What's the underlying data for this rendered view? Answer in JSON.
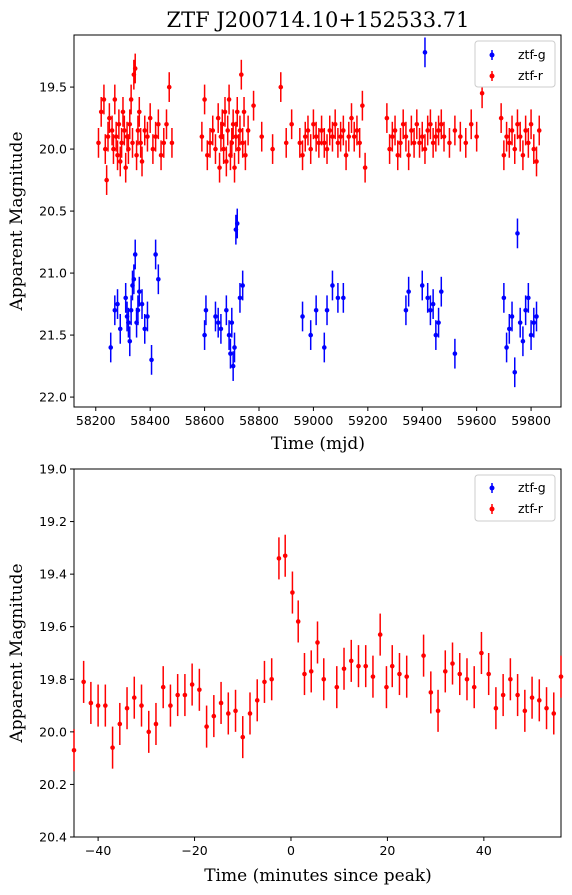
{
  "chart_data": [
    {
      "type": "scatter",
      "title": "ZTF J200714.10+152533.71",
      "xlabel": "Time (mjd)",
      "ylabel": "Apparent Magnitude",
      "xlim": [
        58120,
        59910
      ],
      "ylim": [
        22.08,
        19.08
      ],
      "y_inverted": true,
      "xticks": [
        58200,
        58400,
        58600,
        58800,
        59000,
        59200,
        59400,
        59600,
        59800
      ],
      "yticks": [
        19.5,
        20.0,
        20.5,
        21.0,
        21.5,
        22.0
      ],
      "xtick_labels": [
        "58200",
        "58400",
        "58600",
        "58800",
        "59000",
        "59200",
        "59400",
        "59600",
        "59800"
      ],
      "ytick_labels": [
        "19.5",
        "20.0",
        "20.5",
        "21.0",
        "21.5",
        "22.0"
      ],
      "legend": {
        "placement": "upper-right",
        "entries": [
          "ztf-g",
          "ztf-r"
        ]
      },
      "series": [
        {
          "name": "ztf-g",
          "color": "#0000ff",
          "x": [
            58255,
            58270,
            58280,
            58290,
            58310,
            58315,
            58320,
            58325,
            58330,
            58335,
            58340,
            58345,
            58350,
            58355,
            58360,
            58370,
            58380,
            58390,
            58405,
            58420,
            58430,
            58600,
            58605,
            58640,
            58650,
            58660,
            58680,
            58690,
            58695,
            58700,
            58705,
            58710,
            58715,
            58720,
            58730,
            58740,
            58960,
            58990,
            59010,
            59040,
            59050,
            59070,
            59090,
            59110,
            59340,
            59350,
            59400,
            59410,
            59420,
            59430,
            59440,
            59450,
            59460,
            59470,
            59520,
            59700,
            59710,
            59720,
            59730,
            59740,
            59750,
            59760,
            59770,
            59780,
            59790,
            59800,
            59810,
            59820
          ],
          "y": [
            21.6,
            21.3,
            21.25,
            21.45,
            21.2,
            21.35,
            21.4,
            21.55,
            21.3,
            21.1,
            21.05,
            20.85,
            21.4,
            21.3,
            21.15,
            21.25,
            21.45,
            21.35,
            21.7,
            20.85,
            21.05,
            21.5,
            21.3,
            21.35,
            21.4,
            21.45,
            21.3,
            21.5,
            21.65,
            21.4,
            21.75,
            21.6,
            20.65,
            20.6,
            21.2,
            21.1,
            21.35,
            21.5,
            21.3,
            21.6,
            21.3,
            21.1,
            21.2,
            21.2,
            21.3,
            21.15,
            21.1,
            19.22,
            21.2,
            21.3,
            21.25,
            21.5,
            21.4,
            21.15,
            21.65,
            21.2,
            21.6,
            21.45,
            21.35,
            21.8,
            20.68,
            21.4,
            21.55,
            21.3,
            21.2,
            21.5,
            21.4,
            21.35
          ],
          "y_err": 0.12
        },
        {
          "name": "ztf-r",
          "color": "#ff0000",
          "x": [
            58210,
            58220,
            58230,
            58235,
            58240,
            58245,
            58250,
            58260,
            58265,
            58270,
            58275,
            58280,
            58285,
            58290,
            58295,
            58300,
            58305,
            58310,
            58315,
            58320,
            58325,
            58330,
            58335,
            58340,
            58345,
            58350,
            58355,
            58360,
            58365,
            58370,
            58380,
            58390,
            58400,
            58410,
            58420,
            58430,
            58440,
            58450,
            58460,
            58470,
            58480,
            58590,
            58600,
            58610,
            58620,
            58630,
            58640,
            58650,
            58655,
            58660,
            58665,
            58670,
            58675,
            58680,
            58685,
            58690,
            58695,
            58700,
            58705,
            58710,
            58715,
            58720,
            58725,
            58730,
            58735,
            58740,
            58745,
            58750,
            58760,
            58780,
            58810,
            58850,
            58880,
            58900,
            58920,
            58950,
            58960,
            58970,
            58980,
            58990,
            59000,
            59010,
            59020,
            59030,
            59040,
            59050,
            59060,
            59070,
            59080,
            59090,
            59100,
            59110,
            59120,
            59130,
            59140,
            59150,
            59160,
            59170,
            59180,
            59190,
            59270,
            59280,
            59290,
            59300,
            59310,
            59320,
            59330,
            59340,
            59350,
            59360,
            59370,
            59380,
            59390,
            59400,
            59410,
            59420,
            59430,
            59440,
            59450,
            59460,
            59470,
            59480,
            59500,
            59520,
            59540,
            59560,
            59580,
            59600,
            59620,
            59690,
            59700,
            59710,
            59720,
            59730,
            59740,
            59750,
            59760,
            59770,
            59780,
            59790,
            59800,
            59810,
            59820,
            59830
          ],
          "y": [
            19.95,
            19.7,
            19.6,
            20.0,
            20.25,
            19.9,
            19.75,
            19.85,
            20.0,
            19.6,
            19.9,
            20.05,
            19.8,
            20.1,
            19.95,
            19.7,
            19.85,
            20.15,
            19.9,
            20.0,
            19.8,
            19.6,
            19.95,
            19.4,
            19.35,
            20.05,
            19.85,
            19.7,
            19.95,
            20.1,
            19.85,
            19.9,
            19.75,
            20.0,
            19.9,
            19.8,
            20.05,
            19.95,
            19.8,
            19.5,
            19.95,
            19.9,
            19.6,
            20.05,
            19.95,
            19.85,
            20.0,
            19.75,
            20.15,
            19.9,
            19.8,
            20.0,
            19.7,
            20.1,
            19.85,
            19.6,
            20.05,
            19.95,
            19.8,
            20.15,
            19.9,
            19.7,
            20.0,
            19.85,
            19.4,
            19.95,
            19.7,
            20.05,
            19.85,
            19.65,
            19.9,
            20.0,
            19.5,
            19.95,
            19.8,
            19.95,
            20.05,
            19.9,
            19.85,
            20.0,
            19.8,
            19.9,
            19.95,
            19.85,
            19.95,
            20.0,
            19.85,
            19.9,
            19.8,
            19.95,
            19.9,
            19.85,
            20.05,
            19.9,
            19.75,
            19.9,
            19.85,
            19.95,
            19.65,
            20.15,
            19.75,
            20.0,
            19.9,
            19.85,
            20.05,
            19.95,
            19.8,
            19.9,
            20.05,
            19.85,
            19.95,
            19.8,
            19.95,
            19.9,
            20.0,
            19.85,
            19.8,
            19.95,
            19.9,
            19.85,
            19.8,
            19.9,
            19.95,
            19.85,
            19.9,
            19.95,
            19.8,
            19.9,
            19.55,
            19.75,
            20.05,
            19.9,
            19.95,
            19.85,
            20.0,
            19.8,
            19.9,
            20.05,
            19.85,
            19.95,
            19.8,
            20.0,
            20.1,
            19.85
          ],
          "y_err": 0.12
        }
      ]
    },
    {
      "type": "scatter",
      "title": "",
      "xlabel": "Time (minutes since peak)",
      "ylabel": "Apparent Magnitude",
      "xlim": [
        -45,
        56
      ],
      "ylim": [
        20.4,
        19.0
      ],
      "y_inverted": true,
      "xticks": [
        -40,
        -20,
        0,
        20,
        40
      ],
      "yticks": [
        19.0,
        19.2,
        19.4,
        19.6,
        19.8,
        20.0,
        20.2,
        20.4
      ],
      "xtick_labels": [
        "−40",
        "−20",
        "0",
        "20",
        "40"
      ],
      "ytick_labels": [
        "19.0",
        "19.2",
        "19.4",
        "19.6",
        "19.8",
        "20.0",
        "20.2",
        "20.4"
      ],
      "legend": {
        "placement": "upper-right",
        "entries": [
          "ztf-g",
          "ztf-r"
        ]
      },
      "series": [
        {
          "name": "ztf-g",
          "color": "#0000ff",
          "x": [],
          "y": [],
          "y_err": 0.1
        },
        {
          "name": "ztf-r",
          "color": "#ff0000",
          "x": [
            -45,
            -43,
            -41.5,
            -40,
            -38.5,
            -37,
            -35.5,
            -34,
            -32.5,
            -31,
            -29.5,
            -28,
            -26.5,
            -25,
            -23.5,
            -22,
            -20.5,
            -19,
            -17.5,
            -16,
            -14.5,
            -13,
            -11.5,
            -10,
            -8.5,
            -7,
            -5.5,
            -4,
            -2.5,
            -1.2,
            0.3,
            1.5,
            2.8,
            4.2,
            5.5,
            6.8,
            9.5,
            11,
            12.5,
            14,
            15.5,
            17,
            18.5,
            19.8,
            21,
            22.5,
            24,
            27.5,
            29,
            30.5,
            32,
            33.5,
            35,
            36.5,
            38,
            39.5,
            41,
            42.5,
            44,
            45.5,
            47,
            48.5,
            50,
            51.5,
            53,
            54.5,
            56
          ],
          "y": [
            20.07,
            19.81,
            19.89,
            19.9,
            19.9,
            20.06,
            19.97,
            19.91,
            19.87,
            19.9,
            20.0,
            19.97,
            19.83,
            19.9,
            19.86,
            19.86,
            19.82,
            19.84,
            19.98,
            19.94,
            19.89,
            19.93,
            19.92,
            20.02,
            19.93,
            19.88,
            19.81,
            19.8,
            19.34,
            19.33,
            19.47,
            19.58,
            19.78,
            19.77,
            19.66,
            19.8,
            19.83,
            19.76,
            19.73,
            19.75,
            19.75,
            19.79,
            19.63,
            19.83,
            19.75,
            19.78,
            19.79,
            19.71,
            19.85,
            19.92,
            19.77,
            19.74,
            19.78,
            19.8,
            19.83,
            19.7,
            19.78,
            19.91,
            19.86,
            19.8,
            19.86,
            19.92,
            19.87,
            19.88,
            19.91,
            19.93,
            19.79
          ],
          "y_err": 0.08
        }
      ]
    }
  ]
}
